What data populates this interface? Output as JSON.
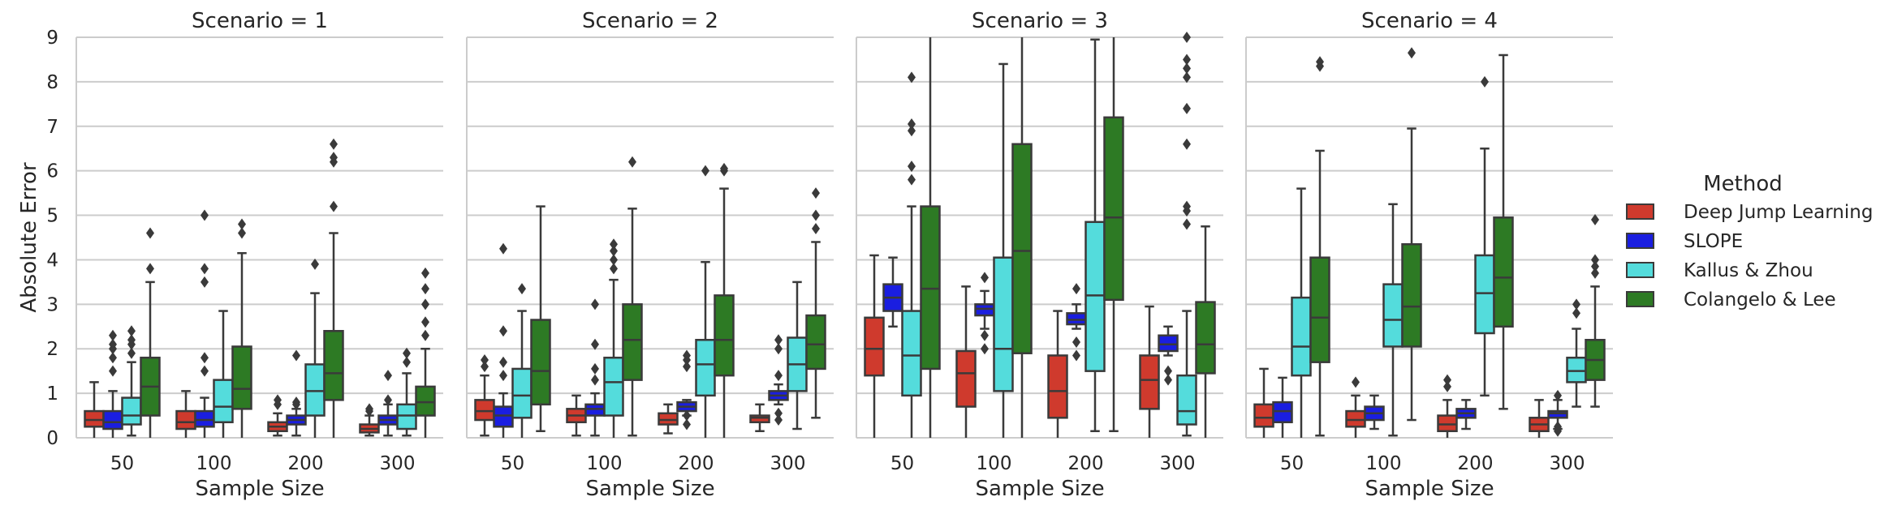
{
  "chart_data": {
    "type": "boxplot",
    "ylabel": "Absolute Error",
    "xlabel": "Sample Size",
    "ylim": [
      0,
      9
    ],
    "yticks": [
      "0",
      "1",
      "2",
      "3",
      "4",
      "5",
      "6",
      "7",
      "8",
      "9"
    ],
    "categories": [
      "50",
      "100",
      "200",
      "300"
    ],
    "legend": {
      "title": "Method",
      "placement": "right",
      "entries": [
        {
          "name": "Deep Jump Learning",
          "color": "#cf3a2d"
        },
        {
          "name": "SLOPE",
          "color": "#1a1ee0"
        },
        {
          "name": "Kallus & Zhou",
          "color": "#54dcdc"
        },
        {
          "name": "Colangelo & Lee",
          "color": "#2d7a24"
        }
      ]
    },
    "panels": [
      {
        "title": "Scenario = 1",
        "groups": [
          [
            [
              0.0,
              0.25,
              0.4,
              0.6,
              1.25,
              []
            ],
            [
              0.0,
              0.2,
              0.35,
              0.6,
              1.05,
              [
                1.5,
                1.8,
                2.0,
                2.1,
                2.3
              ]
            ],
            [
              0.05,
              0.3,
              0.5,
              0.9,
              1.7,
              [
                1.9,
                2.1,
                2.2,
                2.4
              ]
            ],
            [
              0.0,
              0.5,
              1.15,
              1.8,
              3.5,
              [
                3.8,
                4.6
              ]
            ]
          ],
          [
            [
              0.0,
              0.2,
              0.35,
              0.6,
              1.05,
              []
            ],
            [
              0.0,
              0.25,
              0.4,
              0.6,
              0.9,
              [
                1.5,
                1.8,
                3.5,
                3.8,
                5.0
              ]
            ],
            [
              0.0,
              0.35,
              0.7,
              1.3,
              2.85,
              []
            ],
            [
              0.0,
              0.65,
              1.1,
              2.05,
              4.15,
              [
                4.6,
                4.8
              ]
            ]
          ],
          [
            [
              0.05,
              0.15,
              0.25,
              0.35,
              0.55,
              [
                0.75,
                0.85
              ]
            ],
            [
              0.05,
              0.3,
              0.4,
              0.5,
              0.65,
              [
                0.75,
                0.8,
                1.85
              ]
            ],
            [
              0.0,
              0.5,
              1.05,
              1.65,
              3.25,
              [
                3.9
              ]
            ],
            [
              0.0,
              0.85,
              1.45,
              2.4,
              4.6,
              [
                5.2,
                6.2,
                6.3,
                6.6
              ]
            ]
          ],
          [
            [
              0.05,
              0.12,
              0.2,
              0.3,
              0.5,
              [
                0.6,
                0.65
              ]
            ],
            [
              0.05,
              0.3,
              0.4,
              0.5,
              0.75,
              [
                0.85,
                1.4
              ]
            ],
            [
              0.05,
              0.2,
              0.5,
              0.75,
              1.45,
              [
                1.7,
                1.9
              ]
            ],
            [
              0.0,
              0.5,
              0.8,
              1.15,
              2.0,
              [
                2.3,
                2.6,
                3.0,
                3.35,
                3.7
              ]
            ]
          ]
        ]
      },
      {
        "title": "Scenario = 2",
        "groups": [
          [
            [
              0.05,
              0.4,
              0.6,
              0.85,
              1.4,
              [
                1.6,
                1.75
              ]
            ],
            [
              0.0,
              0.25,
              0.5,
              0.7,
              1.0,
              [
                1.4,
                1.7,
                2.4,
                4.25
              ]
            ],
            [
              0.0,
              0.45,
              0.95,
              1.55,
              2.85,
              [
                3.35
              ]
            ],
            [
              0.15,
              0.75,
              1.5,
              2.65,
              5.2,
              []
            ]
          ],
          [
            [
              0.05,
              0.35,
              0.5,
              0.65,
              0.95,
              []
            ],
            [
              0.05,
              0.5,
              0.65,
              0.75,
              1.0,
              [
                1.3,
                1.55,
                2.1,
                3.0
              ]
            ],
            [
              0.0,
              0.5,
              1.25,
              1.8,
              3.55,
              [
                3.8,
                4.0,
                4.2,
                4.35
              ]
            ],
            [
              0.05,
              1.3,
              2.2,
              3.0,
              5.15,
              [
                6.2
              ]
            ]
          ],
          [
            [
              0.1,
              0.3,
              0.4,
              0.55,
              0.75,
              []
            ],
            [
              0.5,
              0.6,
              0.7,
              0.8,
              0.85,
              [
                0.3,
                0.5,
                1.6,
                1.75,
                1.85
              ]
            ],
            [
              0.0,
              0.95,
              1.65,
              2.2,
              3.95,
              [
                6.0
              ]
            ],
            [
              0.0,
              1.4,
              2.2,
              3.2,
              5.6,
              [
                6.0,
                6.05
              ]
            ]
          ],
          [
            [
              0.15,
              0.35,
              0.45,
              0.5,
              0.75,
              []
            ],
            [
              0.75,
              0.85,
              0.95,
              1.05,
              1.2,
              [
                0.4,
                0.55,
                1.4,
                2.0,
                2.2
              ]
            ],
            [
              0.2,
              1.05,
              1.65,
              2.25,
              3.5,
              []
            ],
            [
              0.45,
              1.55,
              2.1,
              2.75,
              4.4,
              [
                4.7,
                5.0,
                5.5
              ]
            ]
          ]
        ]
      },
      {
        "title": "Scenario = 3",
        "groups": [
          [
            [
              0.0,
              1.4,
              2.0,
              2.7,
              4.1,
              []
            ],
            [
              2.5,
              2.85,
              3.15,
              3.45,
              4.05,
              []
            ],
            [
              0.0,
              0.95,
              1.85,
              2.85,
              5.2,
              [
                5.8,
                6.1,
                6.9,
                7.05,
                8.1
              ]
            ],
            [
              0.0,
              1.55,
              3.35,
              5.2,
              9.5,
              []
            ]
          ],
          [
            [
              0.0,
              0.7,
              1.45,
              1.95,
              3.4,
              []
            ],
            [
              2.45,
              2.75,
              2.9,
              3.0,
              3.3,
              [
                2.0,
                2.3,
                3.6
              ]
            ],
            [
              0.0,
              1.05,
              2.0,
              4.05,
              8.4,
              []
            ],
            [
              0.0,
              1.9,
              4.2,
              6.6,
              9.5,
              []
            ]
          ],
          [
            [
              0.0,
              0.45,
              1.05,
              1.85,
              2.85,
              []
            ],
            [
              2.45,
              2.55,
              2.65,
              2.8,
              3.0,
              [
                1.85,
                2.15,
                3.35
              ]
            ],
            [
              0.15,
              1.5,
              3.2,
              4.85,
              8.95,
              []
            ],
            [
              0.15,
              3.1,
              4.95,
              7.2,
              9.5,
              []
            ]
          ],
          [
            [
              0.0,
              0.65,
              1.3,
              1.85,
              2.95,
              []
            ],
            [
              1.85,
              1.95,
              2.1,
              2.3,
              2.5,
              [
                1.3,
                1.5
              ]
            ],
            [
              0.05,
              0.3,
              0.6,
              1.4,
              2.85,
              [
                4.8,
                5.1,
                5.2,
                6.6,
                8.1,
                8.3,
                8.5,
                9.0,
                7.4
              ]
            ],
            [
              0.0,
              1.45,
              2.1,
              3.05,
              4.75,
              []
            ]
          ]
        ]
      },
      {
        "title": "Scenario = 4",
        "groups": [
          [
            [
              0.0,
              0.25,
              0.45,
              0.75,
              1.55,
              []
            ],
            [
              0.0,
              0.35,
              0.6,
              0.8,
              1.35,
              []
            ],
            [
              0.0,
              1.4,
              2.05,
              3.15,
              5.6,
              []
            ],
            [
              0.05,
              1.7,
              2.7,
              4.05,
              6.45,
              [
                8.35,
                8.45
              ]
            ]
          ],
          [
            [
              0.0,
              0.25,
              0.4,
              0.6,
              0.95,
              [
                1.25
              ]
            ],
            [
              0.2,
              0.4,
              0.55,
              0.7,
              0.95,
              []
            ],
            [
              0.05,
              2.05,
              2.65,
              3.45,
              5.25,
              []
            ],
            [
              0.4,
              2.05,
              2.95,
              4.35,
              6.95,
              [
                8.65
              ]
            ]
          ],
          [
            [
              0.0,
              0.15,
              0.3,
              0.5,
              0.85,
              [
                1.15,
                1.3
              ]
            ],
            [
              0.2,
              0.45,
              0.55,
              0.65,
              0.85,
              []
            ],
            [
              0.95,
              2.35,
              3.25,
              4.1,
              6.5,
              [
                8.0
              ]
            ],
            [
              0.65,
              2.5,
              3.6,
              4.95,
              8.6,
              []
            ]
          ],
          [
            [
              0.0,
              0.15,
              0.3,
              0.45,
              0.85,
              []
            ],
            [
              0.2,
              0.45,
              0.55,
              0.6,
              0.85,
              [
                0.15,
                0.25,
                0.95
              ]
            ],
            [
              0.7,
              1.25,
              1.5,
              1.8,
              2.45,
              [
                2.8,
                3.0
              ]
            ],
            [
              0.7,
              1.3,
              1.75,
              2.2,
              3.4,
              [
                3.7,
                3.85,
                4.0,
                4.9
              ]
            ]
          ]
        ]
      }
    ]
  }
}
